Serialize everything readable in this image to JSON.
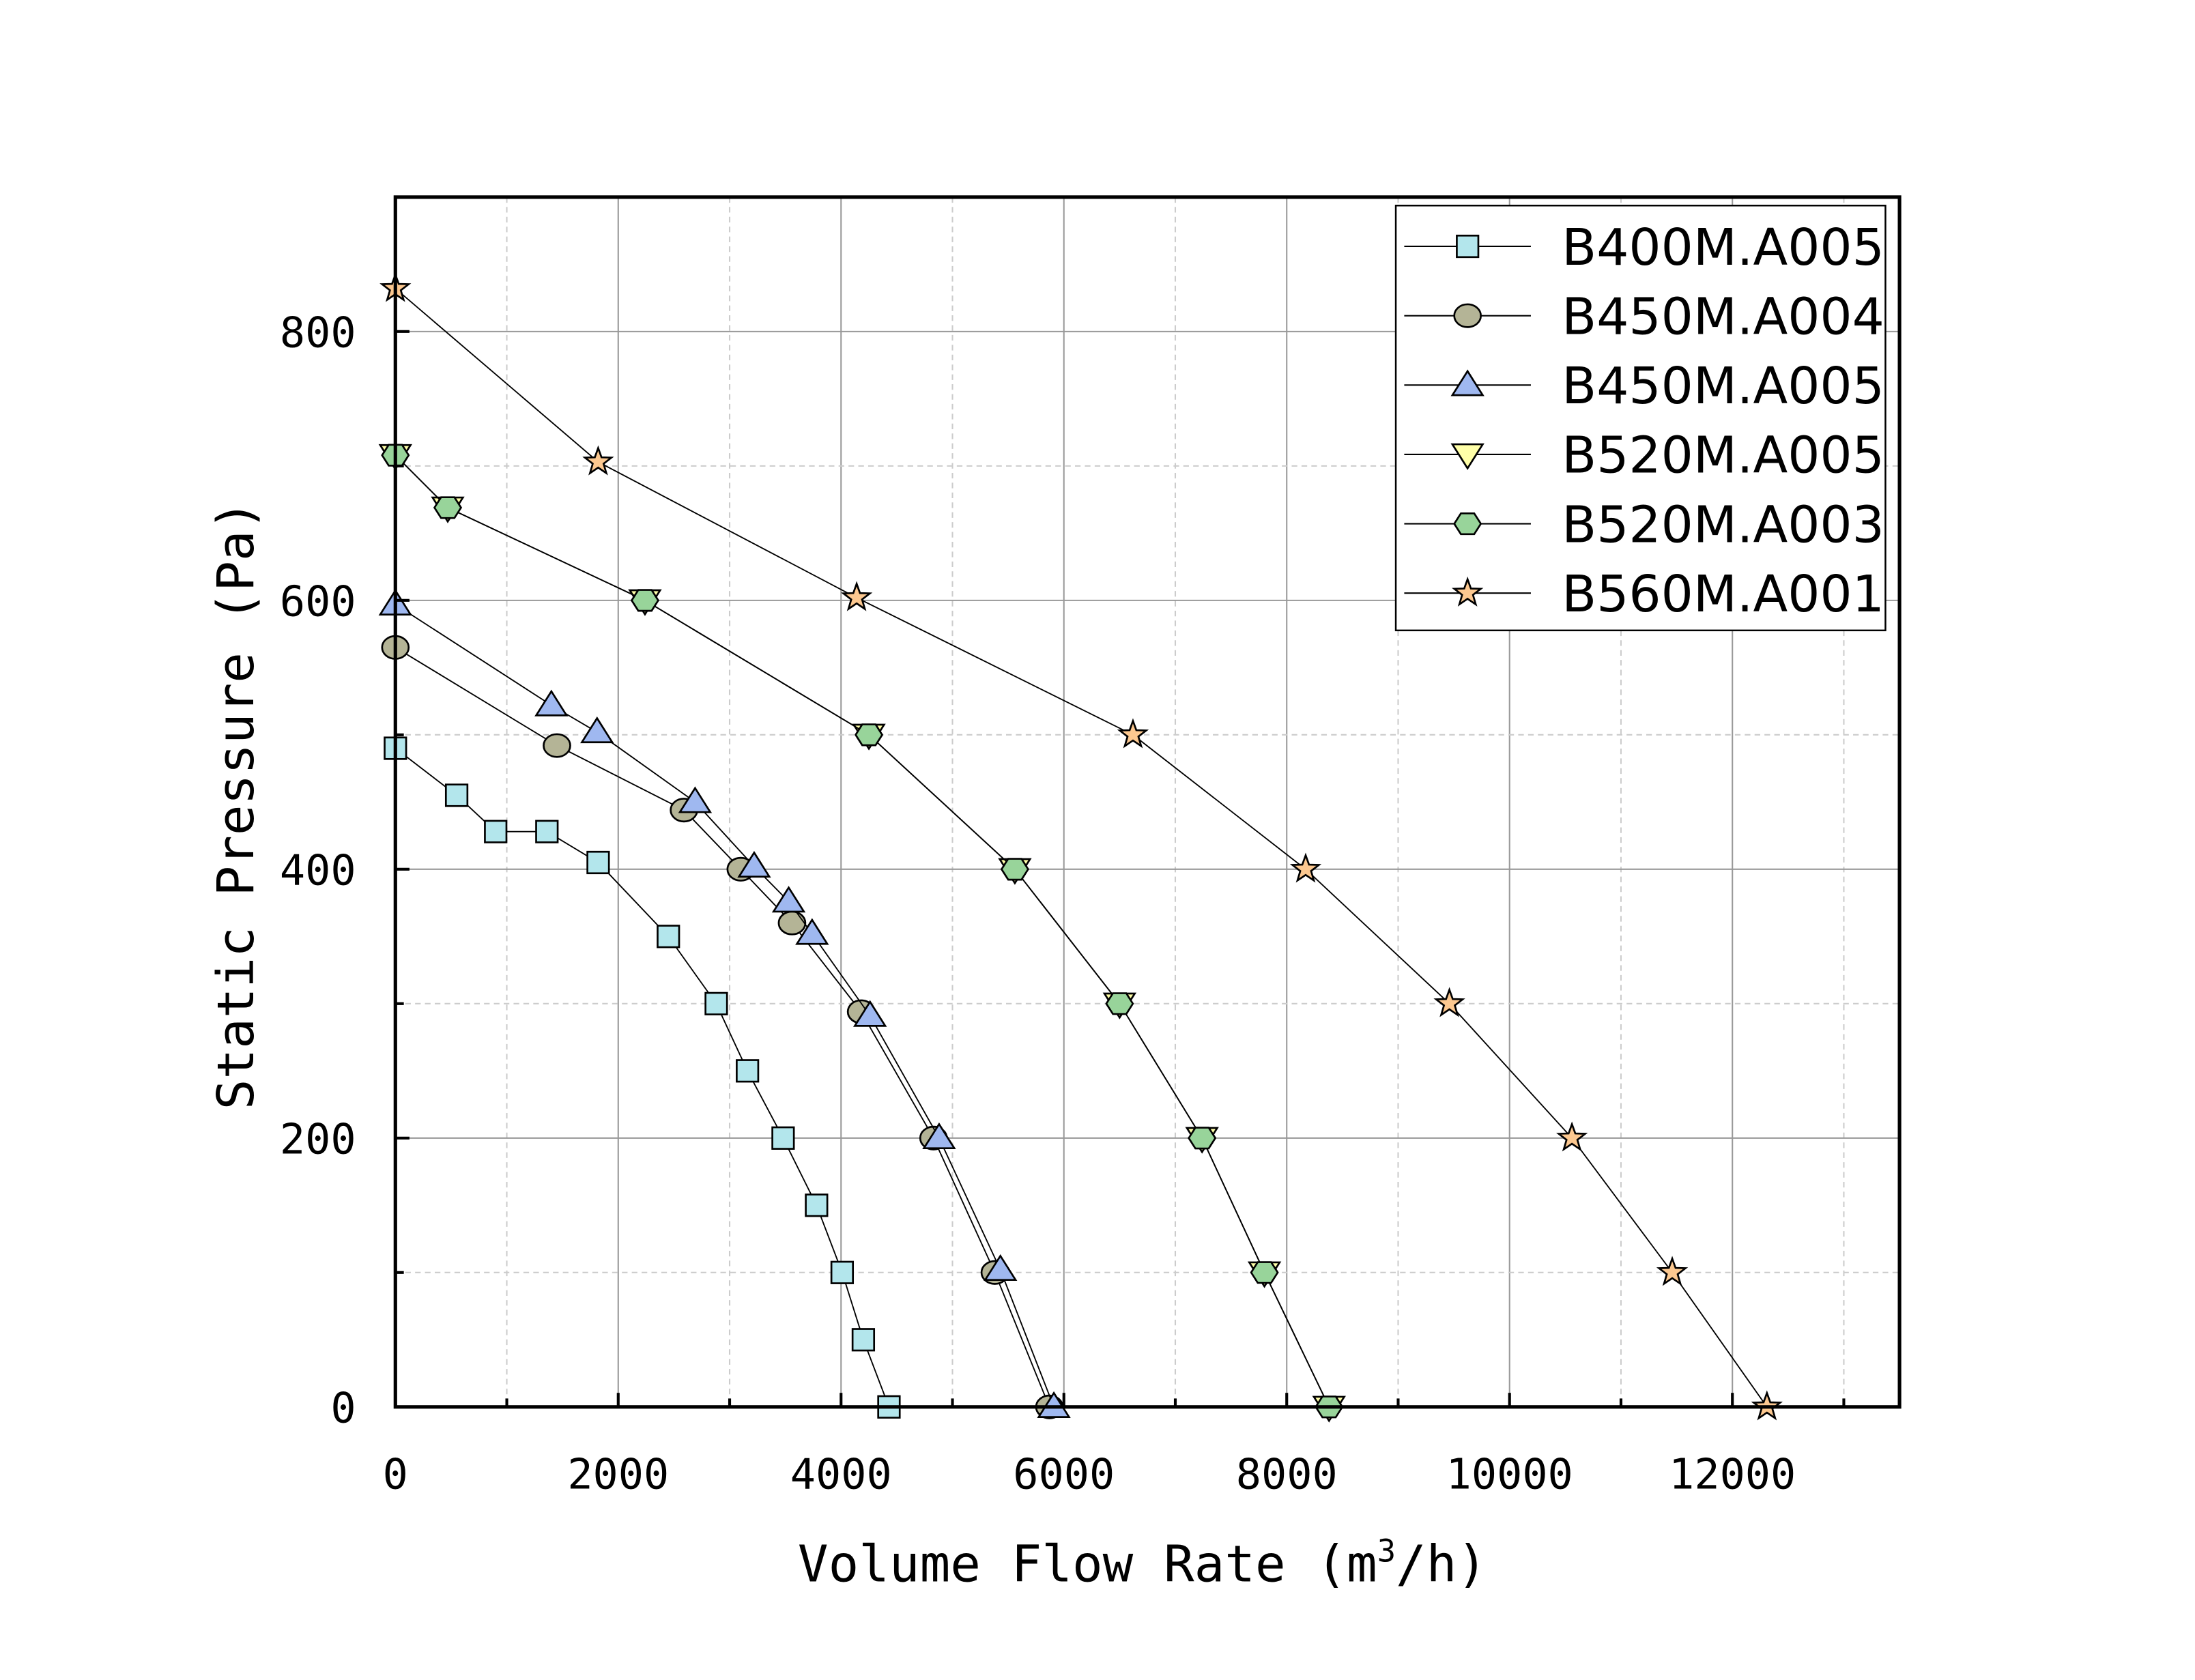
{
  "chart_data": {
    "type": "line",
    "title": "",
    "xlabel": "Volume Flow Rate (m3/h)",
    "xlabel_parts": {
      "pre": "Volume Flow Rate (m",
      "sup": "3",
      "post": "/h)"
    },
    "ylabel": "Static Pressure (Pa)",
    "xlim": [
      0,
      13500
    ],
    "ylim": [
      0,
      900
    ],
    "xticks": [
      0,
      2000,
      4000,
      6000,
      8000,
      10000,
      12000
    ],
    "xtick_labels": [
      "0",
      "2000",
      "4000",
      "6000",
      "8000",
      "10000",
      "12000"
    ],
    "yticks": [
      0,
      200,
      400,
      600,
      800
    ],
    "ytick_labels": [
      "0",
      "200",
      "400",
      "600",
      "800"
    ],
    "grid": true,
    "legend_position": "top-right",
    "series": [
      {
        "name": "B400M.A005",
        "marker": "square",
        "color": "#b3e6ec",
        "x": [
          0,
          550,
          900,
          1360,
          1820,
          2450,
          2880,
          3160,
          3480,
          3780,
          4010,
          4200,
          4430
        ],
        "y": [
          490,
          455,
          428,
          428,
          405,
          350,
          300,
          250,
          200,
          150,
          100,
          50,
          0
        ]
      },
      {
        "name": "B450M.A004",
        "marker": "circle",
        "color": "#b4b496",
        "x": [
          0,
          1450,
          2590,
          3100,
          3560,
          4180,
          4830,
          5380,
          5870
        ],
        "y": [
          565,
          492,
          444,
          400,
          360,
          294,
          200,
          100,
          0
        ]
      },
      {
        "name": "B450M.A005",
        "marker": "triangle-up",
        "color": "#9fb8f0",
        "x": [
          0,
          1400,
          1810,
          2690,
          3220,
          3530,
          3740,
          4260,
          4880,
          5430,
          5910
        ],
        "y": [
          597,
          522,
          502,
          450,
          402,
          376,
          352,
          291,
          200,
          102,
          0
        ]
      },
      {
        "name": "B520M.A005",
        "marker": "triangle-down",
        "color": "#ffffa8",
        "x": [
          0,
          470,
          2240,
          4250,
          5560,
          6500,
          7240,
          7800,
          8380
        ],
        "y": [
          708,
          669,
          600,
          500,
          400,
          300,
          200,
          100,
          0
        ]
      },
      {
        "name": "B520M.A003",
        "marker": "hexagon",
        "color": "#98d49a",
        "x": [
          0,
          470,
          2240,
          4250,
          5560,
          6500,
          7240,
          7800,
          8380
        ],
        "y": [
          708,
          669,
          600,
          500,
          400,
          300,
          200,
          100,
          0
        ]
      },
      {
        "name": "B560M.A001",
        "marker": "star",
        "color": "#fcc890",
        "x": [
          0,
          1820,
          4140,
          6620,
          8170,
          9460,
          10560,
          11460,
          12310
        ],
        "y": [
          832,
          703,
          602,
          500,
          400,
          300,
          200,
          100,
          0
        ]
      }
    ]
  }
}
